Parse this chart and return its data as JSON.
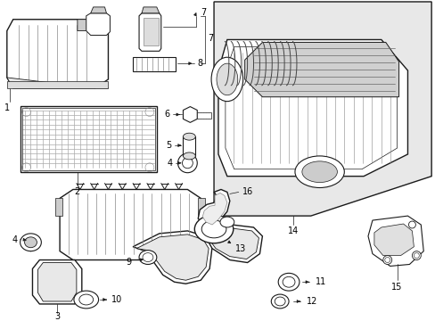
{
  "bg_color": "#ffffff",
  "lc": "#1a1a1a",
  "gray_box_bg": "#e8e8e8",
  "callout_numbers": [
    1,
    2,
    3,
    4,
    5,
    6,
    7,
    8,
    9,
    10,
    11,
    12,
    13,
    14,
    15,
    16
  ],
  "figsize": [
    4.89,
    3.6
  ],
  "dpi": 100
}
